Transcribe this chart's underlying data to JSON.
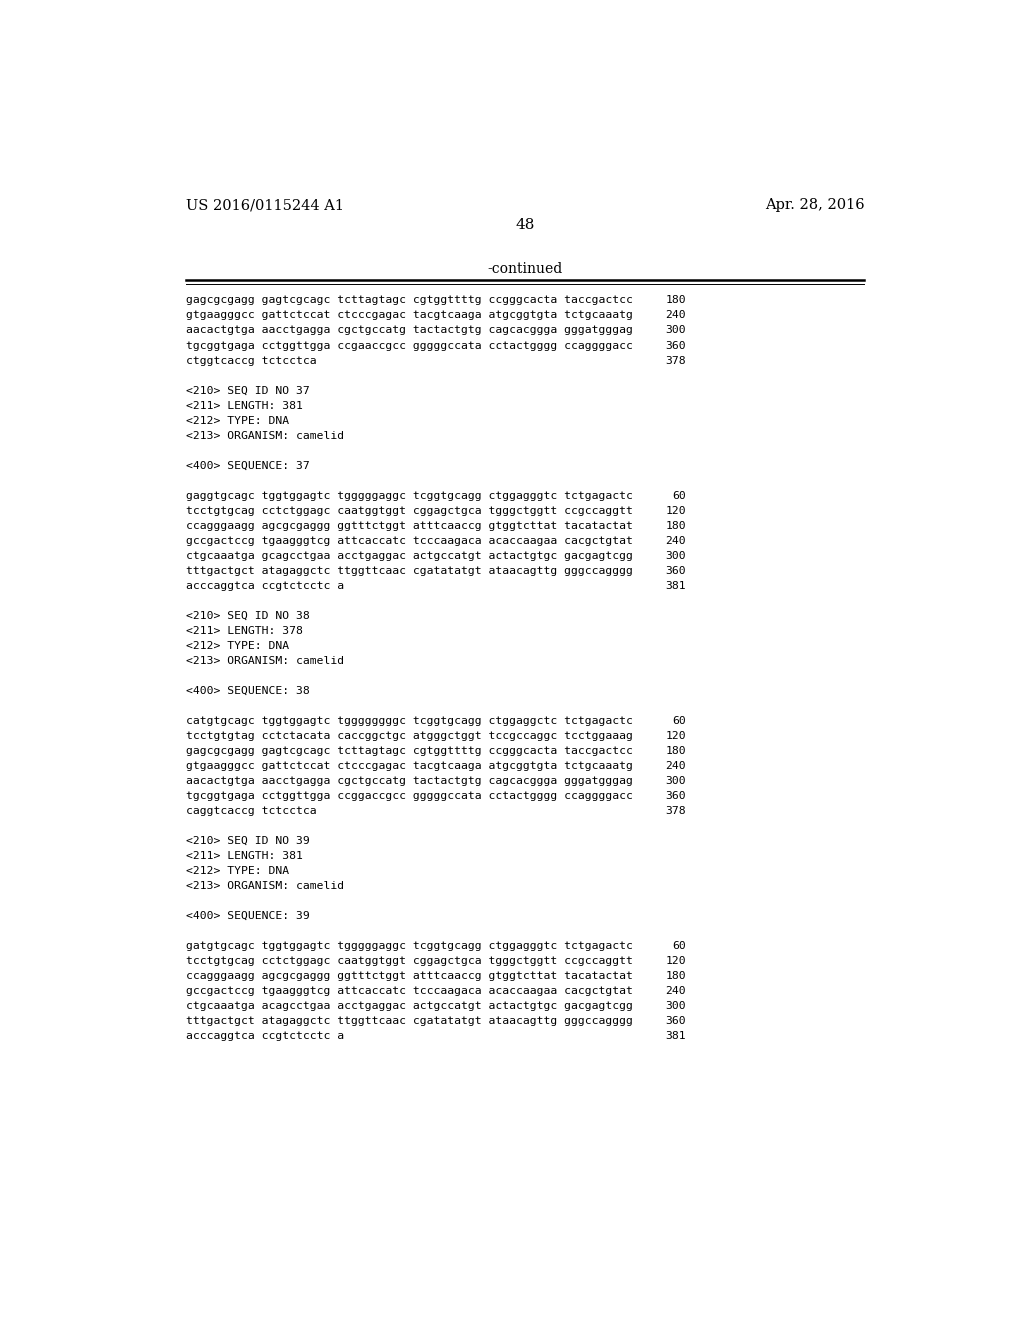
{
  "patent_number": "US 2016/0115244 A1",
  "date": "Apr. 28, 2016",
  "page_number": "48",
  "continued_label": "-continued",
  "background_color": "#ffffff",
  "text_color": "#000000",
  "mono_lines": [
    {
      "text": "gagcgcgagg gagtcgcagc tcttagtagc cgtggttttg ccgggcacta taccgactcc",
      "num": "180",
      "blank": false
    },
    {
      "text": "gtgaagggcc gattctccat ctcccgagac tacgtcaaga atgcggtgta tctgcaaatg",
      "num": "240",
      "blank": false
    },
    {
      "text": "aacactgtga aacctgagga cgctgccatg tactactgtg cagcacggga gggatgggag",
      "num": "300",
      "blank": false
    },
    {
      "text": "tgcggtgaga cctggttgga ccgaaccgcc gggggccata cctactgggg ccaggggacc",
      "num": "360",
      "blank": false
    },
    {
      "text": "ctggtcaccg tctcctca",
      "num": "378",
      "blank": false
    },
    {
      "text": "",
      "num": "",
      "blank": true
    },
    {
      "text": "<210> SEQ ID NO 37",
      "num": "",
      "blank": false
    },
    {
      "text": "<211> LENGTH: 381",
      "num": "",
      "blank": false
    },
    {
      "text": "<212> TYPE: DNA",
      "num": "",
      "blank": false
    },
    {
      "text": "<213> ORGANISM: camelid",
      "num": "",
      "blank": false
    },
    {
      "text": "",
      "num": "",
      "blank": true
    },
    {
      "text": "<400> SEQUENCE: 37",
      "num": "",
      "blank": false
    },
    {
      "text": "",
      "num": "",
      "blank": true
    },
    {
      "text": "gaggtgcagc tggtggagtc tgggggaggc tcggtgcagg ctggagggtc tctgagactc",
      "num": "60",
      "blank": false
    },
    {
      "text": "tcctgtgcag cctctggagc caatggtggt cggagctgca tgggctggtt ccgccaggtt",
      "num": "120",
      "blank": false
    },
    {
      "text": "ccagggaagg agcgcgaggg ggtttctggt atttcaaccg gtggtcttat tacatactat",
      "num": "180",
      "blank": false
    },
    {
      "text": "gccgactccg tgaagggtcg attcaccatc tcccaagaca acaccaagaa cacgctgtat",
      "num": "240",
      "blank": false
    },
    {
      "text": "ctgcaaatga gcagcctgaa acctgaggac actgccatgt actactgtgc gacgagtcgg",
      "num": "300",
      "blank": false
    },
    {
      "text": "tttgactgct atagaggctc ttggttcaac cgatatatgt ataacagttg gggccagggg",
      "num": "360",
      "blank": false
    },
    {
      "text": "acccaggtca ccgtctcctc a",
      "num": "381",
      "blank": false
    },
    {
      "text": "",
      "num": "",
      "blank": true
    },
    {
      "text": "<210> SEQ ID NO 38",
      "num": "",
      "blank": false
    },
    {
      "text": "<211> LENGTH: 378",
      "num": "",
      "blank": false
    },
    {
      "text": "<212> TYPE: DNA",
      "num": "",
      "blank": false
    },
    {
      "text": "<213> ORGANISM: camelid",
      "num": "",
      "blank": false
    },
    {
      "text": "",
      "num": "",
      "blank": true
    },
    {
      "text": "<400> SEQUENCE: 38",
      "num": "",
      "blank": false
    },
    {
      "text": "",
      "num": "",
      "blank": true
    },
    {
      "text": "catgtgcagc tggtggagtc tggggggggc tcggtgcagg ctggaggctc tctgagactc",
      "num": "60",
      "blank": false
    },
    {
      "text": "tcctgtgtag cctctacata caccggctgc atgggctggt tccgccaggc tcctggaaag",
      "num": "120",
      "blank": false
    },
    {
      "text": "gagcgcgagg gagtcgcagc tcttagtagc cgtggttttg ccgggcacta taccgactcc",
      "num": "180",
      "blank": false
    },
    {
      "text": "gtgaagggcc gattctccat ctcccgagac tacgtcaaga atgcggtgta tctgcaaatg",
      "num": "240",
      "blank": false
    },
    {
      "text": "aacactgtga aacctgagga cgctgccatg tactactgtg cagcacggga gggatgggag",
      "num": "300",
      "blank": false
    },
    {
      "text": "tgcggtgaga cctggttgga ccggaccgcc gggggccata cctactgggg ccaggggacc",
      "num": "360",
      "blank": false
    },
    {
      "text": "caggtcaccg tctcctca",
      "num": "378",
      "blank": false
    },
    {
      "text": "",
      "num": "",
      "blank": true
    },
    {
      "text": "<210> SEQ ID NO 39",
      "num": "",
      "blank": false
    },
    {
      "text": "<211> LENGTH: 381",
      "num": "",
      "blank": false
    },
    {
      "text": "<212> TYPE: DNA",
      "num": "",
      "blank": false
    },
    {
      "text": "<213> ORGANISM: camelid",
      "num": "",
      "blank": false
    },
    {
      "text": "",
      "num": "",
      "blank": true
    },
    {
      "text": "<400> SEQUENCE: 39",
      "num": "",
      "blank": false
    },
    {
      "text": "",
      "num": "",
      "blank": true
    },
    {
      "text": "gatgtgcagc tggtggagtc tgggggaggc tcggtgcagg ctggagggtc tctgagactc",
      "num": "60",
      "blank": false
    },
    {
      "text": "tcctgtgcag cctctggagc caatggtggt cggagctgca tgggctggtt ccgccaggtt",
      "num": "120",
      "blank": false
    },
    {
      "text": "ccagggaagg agcgcgaggg ggtttctggt atttcaaccg gtggtcttat tacatactat",
      "num": "180",
      "blank": false
    },
    {
      "text": "gccgactccg tgaagggtcg attcaccatc tcccaagaca acaccaagaa cacgctgtat",
      "num": "240",
      "blank": false
    },
    {
      "text": "ctgcaaatga acagcctgaa acctgaggac actgccatgt actactgtgc gacgagtcgg",
      "num": "300",
      "blank": false
    },
    {
      "text": "tttgactgct atagaggctc ttggttcaac cgatatatgt ataacagttg gggccagggg",
      "num": "360",
      "blank": false
    },
    {
      "text": "acccaggtca ccgtctcctc a",
      "num": "381",
      "blank": false
    }
  ]
}
